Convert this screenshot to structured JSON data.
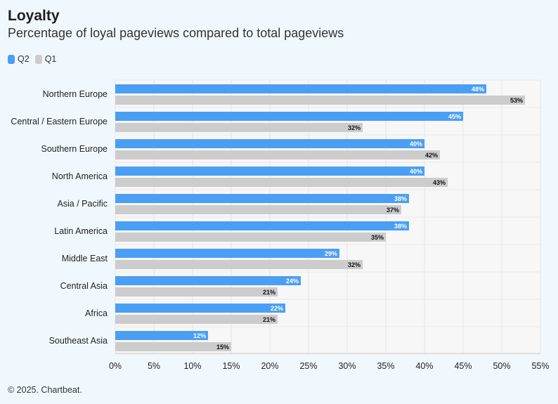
{
  "header": {
    "title": "Loyalty",
    "subtitle": "Percentage of loyal pageviews compared to total pageviews"
  },
  "legend": [
    {
      "name": "Q2",
      "color": "#4a9ff5"
    },
    {
      "name": "Q1",
      "color": "#cccccc"
    }
  ],
  "footer": {
    "copyright": "© 2025. Chartbeat."
  },
  "chart_data": {
    "type": "bar",
    "orientation": "horizontal",
    "categories": [
      "Northern Europe",
      "Central / Eastern Europe",
      "Southern Europe",
      "North America",
      "Asia / Pacific",
      "Latin America",
      "Middle East",
      "Central Asia",
      "Africa",
      "Southeast Asia"
    ],
    "series": [
      {
        "name": "Q2",
        "color": "#4a9ff5",
        "label_color": "#ffffff",
        "values": [
          48,
          45,
          40,
          40,
          38,
          38,
          29,
          24,
          22,
          12
        ]
      },
      {
        "name": "Q1",
        "color": "#cccccc",
        "label_color": "#111111",
        "values": [
          53,
          32,
          42,
          43,
          37,
          35,
          32,
          21,
          21,
          15
        ]
      }
    ],
    "xlim": [
      0,
      55
    ],
    "xticks": [
      0,
      5,
      10,
      15,
      20,
      25,
      30,
      35,
      40,
      45,
      50,
      55
    ],
    "tick_suffix": "%",
    "grid": true,
    "legend_position": "top-left"
  }
}
